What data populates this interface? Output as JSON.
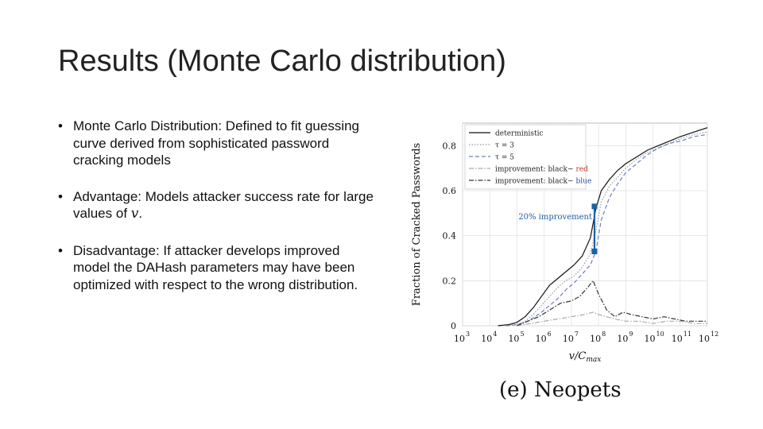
{
  "slide": {
    "title": "Results (Monte Carlo distribution)",
    "bullets": [
      {
        "text": "Monte Carlo Distribution: Defined to fit guessing curve derived from sophisticated password cracking models"
      },
      {
        "text": "Advantage: Models attacker success rate for large values of ",
        "math": "v",
        "suffix": "."
      },
      {
        "text": "Disadvantage: If attacker develops improved model the DAHash parameters may have been optimized with respect to the wrong distribution."
      }
    ],
    "caption": "(e) Neopets"
  },
  "chart_data": {
    "type": "line",
    "xlabel": "v/C_max",
    "ylabel": "Fraction of Cracked Passwords",
    "xscale": "log",
    "xlim": [
      3,
      12
    ],
    "ylim": [
      0,
      0.9
    ],
    "x_tick_labels": [
      "10^3",
      "10^4",
      "10^5",
      "10^6",
      "10^7",
      "10^8",
      "10^9",
      "10^10",
      "10^11",
      "10^12"
    ],
    "y_ticks": [
      0,
      0.2,
      0.4,
      0.6,
      0.8
    ],
    "grid": true,
    "legend": {
      "placement": "top-left",
      "entries": [
        {
          "label": "deterministic",
          "style": "solid",
          "color": "#111111"
        },
        {
          "label": "τ = 3",
          "style": "dotted",
          "color": "#999999"
        },
        {
          "label": "τ = 5",
          "style": "dashed",
          "color": "#6b7fc4"
        },
        {
          "label": "improvement: black−",
          "tail": "red",
          "tail_color": "#c0392b",
          "style": "dashdot",
          "color": "#aaaaaa"
        },
        {
          "label": "improvement: black−",
          "tail": "blue",
          "tail_color": "#2a4aa0",
          "style": "dashdot",
          "color": "#333333"
        }
      ]
    },
    "series": [
      {
        "style": "solid",
        "color": "#111111",
        "x": [
          4.3,
          4.7,
          5,
          5.3,
          5.6,
          5.9,
          6.2,
          6.5,
          6.8,
          7.1,
          7.4,
          7.7,
          7.9,
          8.1,
          8.4,
          8.7,
          9,
          9.4,
          9.8,
          10.2,
          10.6,
          11,
          11.5,
          12
        ],
        "y": [
          0,
          0.005,
          0.015,
          0.04,
          0.08,
          0.13,
          0.18,
          0.21,
          0.24,
          0.27,
          0.31,
          0.39,
          0.52,
          0.6,
          0.65,
          0.69,
          0.72,
          0.75,
          0.78,
          0.8,
          0.82,
          0.84,
          0.86,
          0.88
        ]
      },
      {
        "style": "dotted",
        "color": "#999999",
        "x": [
          4.5,
          5,
          5.3,
          5.6,
          5.9,
          6.2,
          6.5,
          6.8,
          7.1,
          7.4,
          7.7,
          7.9,
          8.1,
          8.4,
          8.7,
          9,
          9.4,
          9.8,
          10.2,
          10.6,
          11,
          11.5,
          12
        ],
        "y": [
          0,
          0.005,
          0.02,
          0.05,
          0.09,
          0.13,
          0.17,
          0.2,
          0.22,
          0.26,
          0.32,
          0.42,
          0.55,
          0.62,
          0.66,
          0.7,
          0.74,
          0.77,
          0.79,
          0.81,
          0.83,
          0.85,
          0.86
        ]
      },
      {
        "style": "dashed",
        "color": "#6b7fc4",
        "x": [
          4.6,
          5,
          5.3,
          5.6,
          5.9,
          6.2,
          6.5,
          6.8,
          7.1,
          7.4,
          7.7,
          7.9,
          8.1,
          8.4,
          8.7,
          9,
          9.4,
          9.8,
          10.2,
          10.6,
          11,
          11.5,
          12
        ],
        "y": [
          0,
          0.005,
          0.015,
          0.035,
          0.06,
          0.09,
          0.12,
          0.16,
          0.19,
          0.23,
          0.27,
          0.33,
          0.47,
          0.57,
          0.63,
          0.68,
          0.72,
          0.76,
          0.79,
          0.81,
          0.82,
          0.84,
          0.85
        ]
      },
      {
        "style": "dashdot",
        "color": "#aaaaaa",
        "x": [
          5,
          5.5,
          6,
          6.5,
          7,
          7.5,
          7.8,
          8,
          8.3,
          8.6,
          9,
          9.5,
          10,
          10.5,
          11,
          11.5,
          12
        ],
        "y": [
          0,
          0.01,
          0.02,
          0.03,
          0.04,
          0.05,
          0.06,
          0.05,
          0.04,
          0.03,
          0.02,
          0.02,
          0.01,
          0.02,
          0.02,
          0.01,
          0.01
        ]
      },
      {
        "style": "dashdot",
        "color": "#333333",
        "x": [
          5,
          5.4,
          5.8,
          6.2,
          6.6,
          7,
          7.3,
          7.6,
          7.8,
          8,
          8.3,
          8.6,
          8.9,
          9.2,
          9.6,
          10,
          10.4,
          10.8,
          11.2,
          11.6,
          12
        ],
        "y": [
          0,
          0.02,
          0.04,
          0.07,
          0.1,
          0.11,
          0.13,
          0.17,
          0.2,
          0.14,
          0.07,
          0.04,
          0.06,
          0.05,
          0.04,
          0.03,
          0.04,
          0.03,
          0.02,
          0.02,
          0.02
        ]
      }
    ],
    "annotation": {
      "text": "20% improvement",
      "color": "#1f5fa6",
      "x": 7.85,
      "y_top": 0.53,
      "y_bottom": 0.33
    }
  }
}
